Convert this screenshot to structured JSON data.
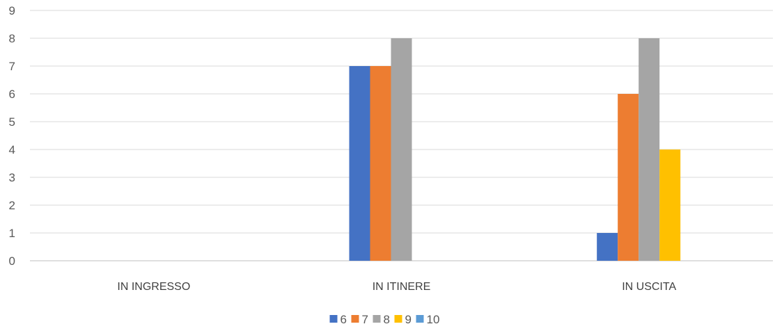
{
  "chart_data": {
    "type": "bar",
    "title": "",
    "xlabel": "",
    "ylabel": "",
    "categories": [
      "IN INGRESSO",
      "IN ITINERE",
      "IN USCITA"
    ],
    "ylim": [
      0,
      9
    ],
    "yticks": [
      0,
      1,
      2,
      3,
      4,
      5,
      6,
      7,
      8,
      9
    ],
    "grid": true,
    "legend_position": "bottom",
    "series": [
      {
        "name": "6",
        "color": "#4472C4",
        "values": [
          0,
          7,
          1
        ]
      },
      {
        "name": "7",
        "color": "#ED7D31",
        "values": [
          0,
          7,
          6
        ]
      },
      {
        "name": "8",
        "color": "#A5A5A5",
        "values": [
          0,
          8,
          8
        ]
      },
      {
        "name": "9",
        "color": "#FFC000",
        "values": [
          0,
          0,
          4
        ]
      },
      {
        "name": "10",
        "color": "#5B9BD5",
        "values": [
          0,
          0,
          0
        ]
      }
    ]
  }
}
